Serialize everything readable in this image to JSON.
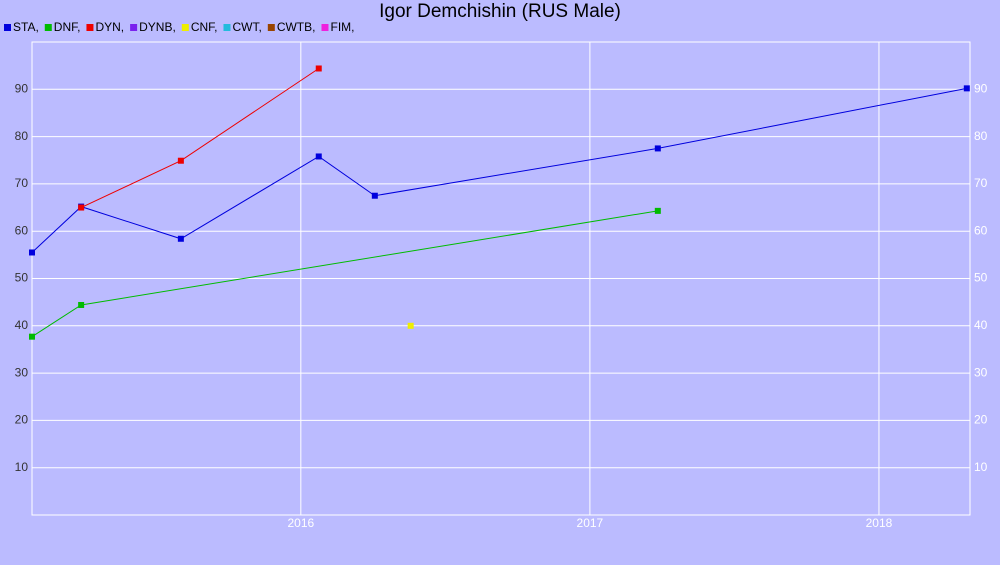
{
  "chart_data": {
    "type": "line",
    "title": "Igor Demchishin (RUS Male)",
    "series": [
      {
        "name": "STA,",
        "color": "#0000dd",
        "x": [
          2015.07,
          2015.24,
          2015.585,
          2016.062,
          2016.256,
          2017.235,
          2018.304
        ],
        "values": [
          55.5,
          65.2,
          58.4,
          75.8,
          67.5,
          77.5,
          90.2
        ]
      },
      {
        "name": "DNF,",
        "color": "#00bb00",
        "x": [
          2015.07,
          2015.24,
          2017.235
        ],
        "values": [
          37.7,
          44.4,
          64.3
        ]
      },
      {
        "name": "DYN,",
        "color": "#ee0000",
        "x": [
          2015.24,
          2015.585,
          2016.062
        ],
        "values": [
          65,
          74.9,
          94.4
        ]
      },
      {
        "name": "DYNB,",
        "color": "#7a22ee",
        "x": [],
        "values": []
      },
      {
        "name": "CNF,",
        "color": "#eeee00",
        "x": [
          2016.38
        ],
        "values": [
          40
        ]
      },
      {
        "name": "CWT,",
        "color": "#22bbdd",
        "x": [],
        "values": []
      },
      {
        "name": "CWTB,",
        "color": "#994400",
        "x": [],
        "values": []
      },
      {
        "name": "FIM,",
        "color": "#ee22dd",
        "x": [],
        "values": []
      }
    ],
    "xlim": [
      2015.07,
      2018.315
    ],
    "xticks": [
      2016,
      2017,
      2018
    ],
    "ylim": [
      0,
      100
    ],
    "yticks": [
      10,
      20,
      30,
      40,
      50,
      60,
      70,
      80,
      90
    ],
    "grid": true
  }
}
